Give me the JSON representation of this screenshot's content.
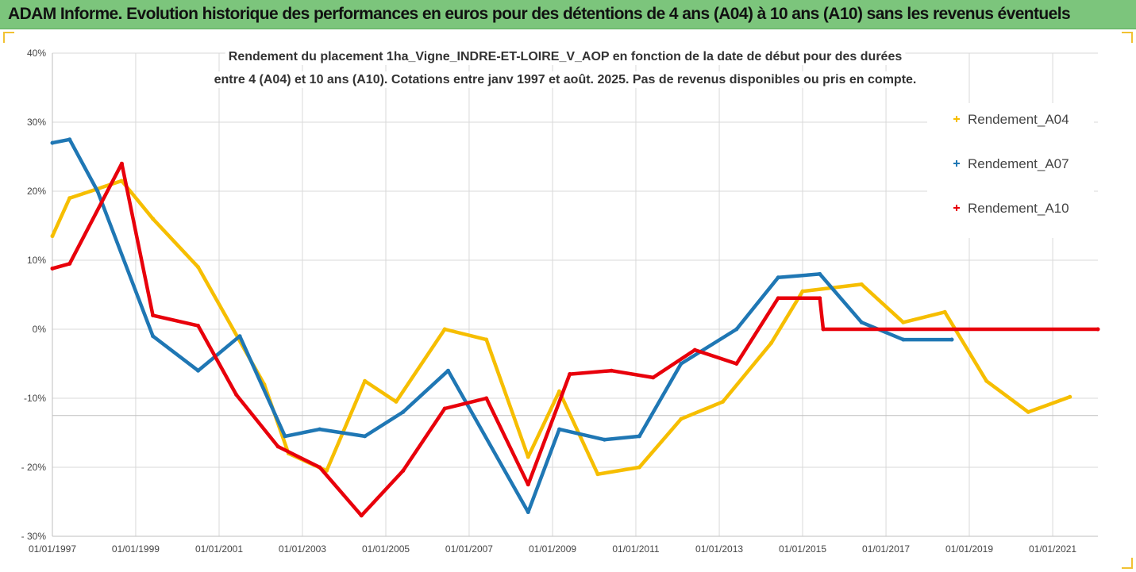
{
  "header": {
    "title": "ADAM Informe. Evolution historique des performances en euros pour des détentions de 4 ans (A04) à 10 ans (A10) sans les revenus éventuels"
  },
  "colors": {
    "header_bg": "#7cc57c",
    "A04": "#f6be00",
    "A07": "#1f77b4",
    "A10": "#e8000b",
    "grid": "#d9d9d9"
  },
  "chart_data": {
    "type": "line",
    "title": "Rendement du placement 1ha_Vigne_INDRE-ET-LOIRE_V_AOP en fonction de la date de début pour des durées",
    "subtitle": "entre 4 (A04) et 10 ans (A10). Cotations entre janv 1997 et août. 2025. Pas de revenus disponibles ou pris en compte.",
    "xlim": [
      "1997-01-01",
      "2022-02-01"
    ],
    "ylim": [
      -30,
      40
    ],
    "x_tick_labels": [
      "01/01/1997",
      "01/01/1999",
      "01/01/2001",
      "01/01/2003",
      "01/01/2005",
      "01/01/2007",
      "01/01/2009",
      "01/01/2011",
      "01/01/2013",
      "01/01/2015",
      "01/01/2017",
      "01/01/2019",
      "01/01/2021"
    ],
    "x_tick_dates": [
      "1997-01-01",
      "1999-01-01",
      "2001-01-01",
      "2003-01-01",
      "2005-01-01",
      "2007-01-01",
      "2009-01-01",
      "2011-01-01",
      "2013-01-01",
      "2015-01-01",
      "2017-01-01",
      "2019-01-01",
      "2021-01-01"
    ],
    "y_tick_labels": [
      "40%",
      "30%",
      "20%",
      "10%",
      "0%",
      "-10%",
      "- 20%",
      "- 30%"
    ],
    "y_tick_values": [
      40,
      30,
      20,
      10,
      0,
      -10,
      -20,
      -30
    ],
    "grid": true,
    "legend_position": "right",
    "series": [
      {
        "name": "Rendement_A04",
        "color": "#f6be00",
        "x": [
          "1997-01-01",
          "1997-06-01",
          "1998-09-01",
          "1999-06-01",
          "2000-07-01",
          "2002-02-01",
          "2002-09-01",
          "2003-08-01",
          "2004-07-01",
          "2005-04-01",
          "2006-06-01",
          "2007-06-01",
          "2008-06-01",
          "2009-03-01",
          "2010-02-01",
          "2011-02-01",
          "2012-02-01",
          "2013-02-01",
          "2014-04-01",
          "2015-01-01",
          "2016-06-01",
          "2017-06-01",
          "2018-06-01",
          "2019-06-01",
          "2020-06-01",
          "2021-06-01"
        ],
        "values": [
          13.5,
          19,
          21.5,
          16,
          9,
          -8,
          -18,
          -20.5,
          -7.5,
          -10.5,
          0,
          -1.5,
          -18.5,
          -9,
          -21,
          -20,
          -13,
          -10.5,
          -2,
          5.5,
          6.5,
          1,
          2.5,
          -7.5,
          -12,
          -9.8
        ]
      },
      {
        "name": "Rendement_A07",
        "color": "#1f77b4",
        "x": [
          "1997-01-01",
          "1997-06-01",
          "1998-02-01",
          "1999-06-01",
          "2000-07-01",
          "2001-07-01",
          "2002-08-01",
          "2003-06-01",
          "2004-07-01",
          "2005-06-01",
          "2006-07-01",
          "2008-06-01",
          "2009-03-01",
          "2010-04-01",
          "2011-02-01",
          "2012-02-01",
          "2013-06-01",
          "2014-06-01",
          "2015-06-01",
          "2016-06-01",
          "2017-06-01",
          "2018-08-01"
        ],
        "values": [
          27,
          27.5,
          20,
          -1,
          -6,
          -1,
          -15.5,
          -14.5,
          -15.5,
          -12,
          -6,
          -26.5,
          -14.5,
          -16,
          -15.5,
          -5,
          0,
          7.5,
          8,
          1,
          -1.5,
          -1.5
        ]
      },
      {
        "name": "Rendement_A10",
        "color": "#e8000b",
        "x": [
          "1997-01-01",
          "1997-06-01",
          "1998-09-01",
          "1999-06-01",
          "2000-07-01",
          "2001-06-01",
          "2002-06-01",
          "2003-06-01",
          "2004-06-01",
          "2005-06-01",
          "2006-06-01",
          "2007-06-01",
          "2008-06-01",
          "2009-06-01",
          "2010-06-01",
          "2011-06-01",
          "2012-06-01",
          "2013-06-01",
          "2014-06-01",
          "2015-06-01",
          "2015-07-01",
          "2022-02-01"
        ],
        "values": [
          8.8,
          9.5,
          24,
          2,
          0.5,
          -9.5,
          -17,
          -20,
          -27,
          -20.5,
          -11.5,
          -10,
          -22.5,
          -6.5,
          -6,
          -7,
          -3,
          -5,
          4.5,
          4.5,
          0,
          0
        ]
      }
    ]
  }
}
